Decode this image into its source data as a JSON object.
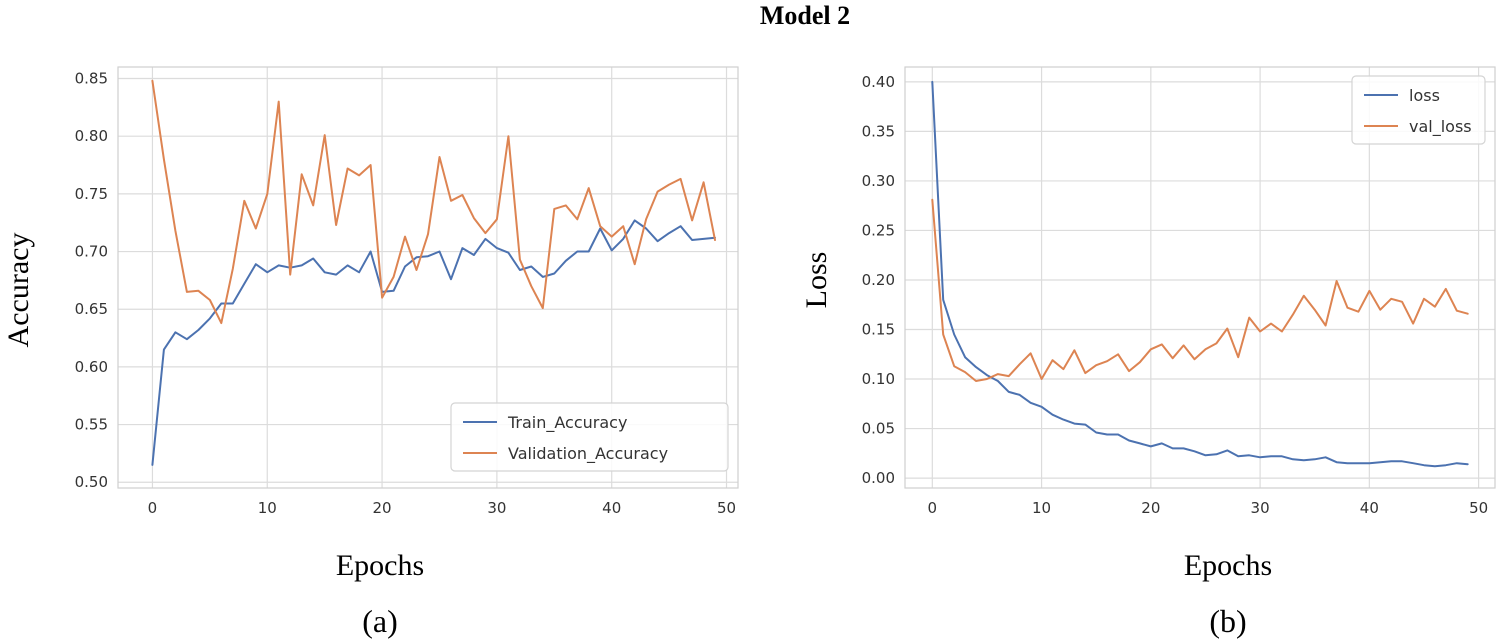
{
  "figure_title": "Model 2",
  "colors": {
    "series_blue": "#4c72b0",
    "series_orange": "#dd8452"
  },
  "chart_data": [
    {
      "type": "line",
      "panel_label": "(a)",
      "title": "",
      "xlabel": "Epochs",
      "ylabel": "Accuracy",
      "xlim": [
        -3,
        51
      ],
      "ylim": [
        0.495,
        0.86
      ],
      "xticks": [
        0,
        10,
        20,
        30,
        40,
        50
      ],
      "yticks": [
        0.5,
        0.55,
        0.6,
        0.65,
        0.7,
        0.75,
        0.8,
        0.85
      ],
      "ytick_labels": [
        "0.50",
        "0.55",
        "0.60",
        "0.65",
        "0.70",
        "0.75",
        "0.80",
        "0.85"
      ],
      "grid": true,
      "legend_position": "lower-right",
      "x": [
        0,
        1,
        2,
        3,
        4,
        5,
        6,
        7,
        8,
        9,
        10,
        11,
        12,
        13,
        14,
        15,
        16,
        17,
        18,
        19,
        20,
        21,
        22,
        23,
        24,
        25,
        26,
        27,
        28,
        29,
        30,
        31,
        32,
        33,
        34,
        35,
        36,
        37,
        38,
        39,
        40,
        41,
        42,
        43,
        44,
        45,
        46,
        47,
        48,
        49
      ],
      "series": [
        {
          "name": "Train_Accuracy",
          "color": "#4c72b0",
          "values": [
            0.515,
            0.615,
            0.63,
            0.624,
            0.632,
            0.642,
            0.655,
            0.655,
            0.672,
            0.689,
            0.682,
            0.688,
            0.686,
            0.688,
            0.694,
            0.682,
            0.68,
            0.688,
            0.682,
            0.7,
            0.665,
            0.666,
            0.687,
            0.695,
            0.696,
            0.7,
            0.676,
            0.703,
            0.697,
            0.711,
            0.703,
            0.699,
            0.684,
            0.687,
            0.678,
            0.681,
            0.692,
            0.7,
            0.7,
            0.72,
            0.701,
            0.711,
            0.727,
            0.72,
            0.709,
            0.716,
            0.722,
            0.71,
            0.711,
            0.712
          ]
        },
        {
          "name": "Validation_Accuracy",
          "color": "#dd8452",
          "values": [
            0.848,
            0.78,
            0.718,
            0.665,
            0.666,
            0.658,
            0.638,
            0.685,
            0.744,
            0.72,
            0.75,
            0.83,
            0.68,
            0.767,
            0.74,
            0.801,
            0.723,
            0.772,
            0.766,
            0.775,
            0.66,
            0.678,
            0.713,
            0.684,
            0.715,
            0.782,
            0.744,
            0.749,
            0.729,
            0.716,
            0.728,
            0.8,
            0.693,
            0.67,
            0.651,
            0.737,
            0.74,
            0.728,
            0.755,
            0.722,
            0.713,
            0.722,
            0.689,
            0.728,
            0.752,
            0.758,
            0.763,
            0.727,
            0.76,
            0.71
          ]
        }
      ]
    },
    {
      "type": "line",
      "panel_label": "(b)",
      "title": "",
      "xlabel": "Epochs",
      "ylabel": "Loss",
      "xlim": [
        -2.5,
        51.5
      ],
      "ylim": [
        -0.01,
        0.415
      ],
      "xticks": [
        0,
        10,
        20,
        30,
        40,
        50
      ],
      "yticks": [
        0.0,
        0.05,
        0.1,
        0.15,
        0.2,
        0.25,
        0.3,
        0.35,
        0.4
      ],
      "ytick_labels": [
        "0.00",
        "0.05",
        "0.10",
        "0.15",
        "0.20",
        "0.25",
        "0.30",
        "0.35",
        "0.40"
      ],
      "grid": true,
      "legend_position": "top-right",
      "x": [
        0,
        1,
        2,
        3,
        4,
        5,
        6,
        7,
        8,
        9,
        10,
        11,
        12,
        13,
        14,
        15,
        16,
        17,
        18,
        19,
        20,
        21,
        22,
        23,
        24,
        25,
        26,
        27,
        28,
        29,
        30,
        31,
        32,
        33,
        34,
        35,
        36,
        37,
        38,
        39,
        40,
        41,
        42,
        43,
        44,
        45,
        46,
        47,
        48,
        49
      ],
      "series": [
        {
          "name": "loss",
          "color": "#4c72b0",
          "values": [
            0.4,
            0.18,
            0.145,
            0.122,
            0.112,
            0.104,
            0.098,
            0.087,
            0.084,
            0.076,
            0.072,
            0.064,
            0.059,
            0.055,
            0.054,
            0.046,
            0.044,
            0.044,
            0.038,
            0.035,
            0.032,
            0.035,
            0.03,
            0.03,
            0.027,
            0.023,
            0.024,
            0.028,
            0.022,
            0.023,
            0.021,
            0.022,
            0.022,
            0.019,
            0.018,
            0.019,
            0.021,
            0.016,
            0.015,
            0.015,
            0.015,
            0.016,
            0.017,
            0.017,
            0.015,
            0.013,
            0.012,
            0.013,
            0.015,
            0.014
          ]
        },
        {
          "name": "val_loss",
          "color": "#dd8452",
          "values": [
            0.281,
            0.145,
            0.113,
            0.107,
            0.098,
            0.1,
            0.105,
            0.103,
            0.115,
            0.126,
            0.1,
            0.119,
            0.11,
            0.129,
            0.106,
            0.114,
            0.118,
            0.125,
            0.108,
            0.117,
            0.13,
            0.135,
            0.121,
            0.134,
            0.12,
            0.13,
            0.136,
            0.151,
            0.122,
            0.162,
            0.148,
            0.156,
            0.148,
            0.165,
            0.184,
            0.17,
            0.154,
            0.199,
            0.172,
            0.168,
            0.189,
            0.17,
            0.181,
            0.178,
            0.156,
            0.181,
            0.173,
            0.191,
            0.169,
            0.166
          ]
        }
      ]
    }
  ]
}
